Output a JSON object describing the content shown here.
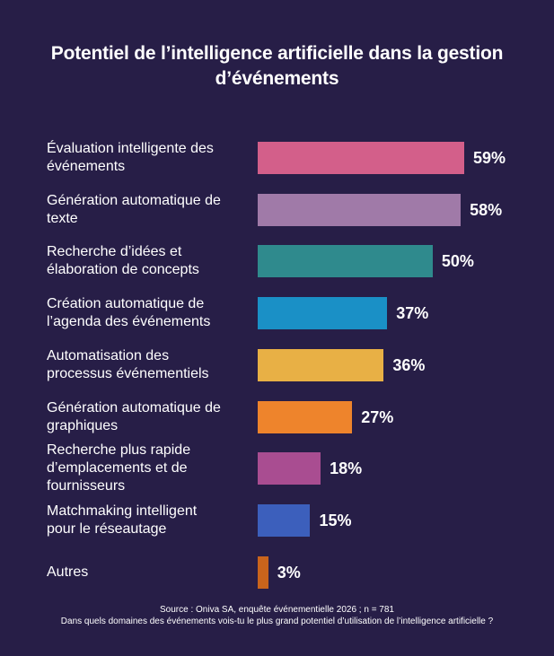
{
  "chart_data": {
    "type": "bar",
    "orientation": "horizontal",
    "title": "Potentiel de l’intelligence artificielle dans la gestion d’événements",
    "categories": [
      "Évaluation intelligente des événements",
      "Génération automatique de texte",
      "Recherche d’idées et élaboration de concepts",
      "Création automatique de l’agenda des événements",
      "Automatisation des processus événementiels",
      "Génération automatique de graphiques",
      "Recherche plus rapide d’emplacements et de fournisseurs",
      "Matchmaking intelligent pour le réseautage",
      "Autres"
    ],
    "values": [
      59,
      58,
      50,
      37,
      36,
      27,
      18,
      15,
      3
    ],
    "value_labels": [
      "59%",
      "58%",
      "50%",
      "37%",
      "36%",
      "27%",
      "18%",
      "15%",
      "3%"
    ],
    "colors": [
      "#d35f8a",
      "#a07aa8",
      "#2f8a8d",
      "#1a90c6",
      "#e8b045",
      "#ee842c",
      "#a94d91",
      "#3c5fbc",
      "#c9641c"
    ],
    "xlim": [
      0,
      100
    ],
    "grid": false,
    "legend": "none",
    "background": "#271e47"
  },
  "source": {
    "line1": "Source : Oniva SA, enquête événementielle 2026 ; n = 781",
    "line2": "Dans quels domaines des événements vois-tu le plus grand potentiel d’utilisation de l’intelligence artificielle ?"
  }
}
